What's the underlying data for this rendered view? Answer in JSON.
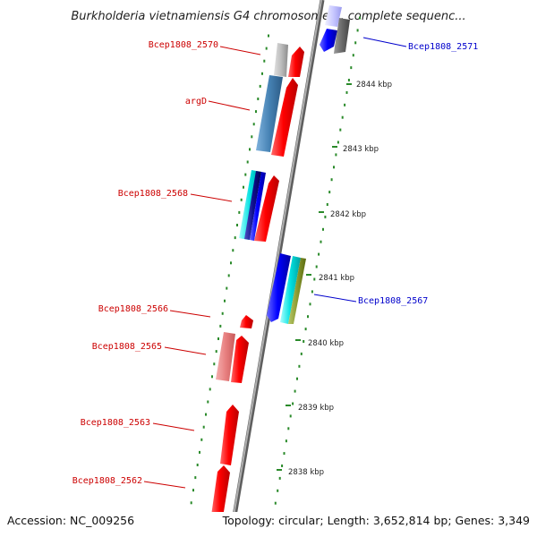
{
  "title": "Burkholderia vietnamiensis G4 chromosome 1, complete sequenc...",
  "footer": {
    "accession": "Accession: NC_009256",
    "summary": "Topology: circular; Length: 3,652,814 bp; Genes: 3,349"
  },
  "kbp_labels": [
    "2844 kbp",
    "2843 kbp",
    "2842 kbp",
    "2841 kbp",
    "2840 kbp",
    "2839 kbp",
    "2838 kbp"
  ],
  "gene_labels": [
    {
      "text": "Bcep1808_2570",
      "color": "#cc0000"
    },
    {
      "text": "argD",
      "color": "#cc0000"
    },
    {
      "text": "Bcep1808_2568",
      "color": "#cc0000"
    },
    {
      "text": "Bcep1808_2566",
      "color": "#cc0000"
    },
    {
      "text": "Bcep1808_2565",
      "color": "#cc0000"
    },
    {
      "text": "Bcep1808_2563",
      "color": "#cc0000"
    },
    {
      "text": "Bcep1808_2562",
      "color": "#cc0000"
    },
    {
      "text": "Bcep1808_2571",
      "color": "#0000cc"
    },
    {
      "text": "Bcep1808_2567",
      "color": "#0000cc"
    }
  ],
  "colors": {
    "backbone": "#8a8a8a",
    "dots": "#2a8a2a",
    "forward_gene": "#ff0000",
    "reverse_gene": "#0000ee",
    "label_forward": "#cc0000",
    "label_reverse": "#0000cc"
  }
}
